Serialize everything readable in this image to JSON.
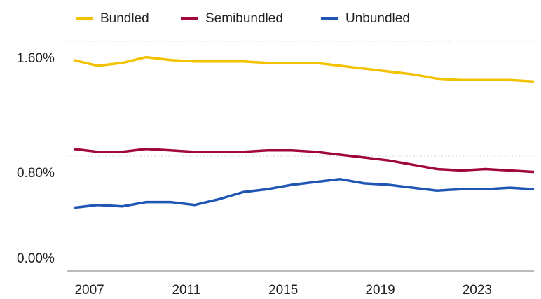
{
  "chart_data": {
    "type": "line",
    "x": [
      2006,
      2007,
      2008,
      2009,
      2010,
      2011,
      2012,
      2013,
      2014,
      2015,
      2016,
      2017,
      2018,
      2019,
      2020,
      2021,
      2022,
      2023,
      2024,
      2025
    ],
    "xlim": [
      2006,
      2025
    ],
    "xticks": [
      2007,
      2011,
      2015,
      2019,
      2023
    ],
    "ylim": [
      0,
      1.6
    ],
    "yticks": [
      {
        "value": 0,
        "label": "0.00%"
      },
      {
        "value": 0.8,
        "label": "0.80%"
      },
      {
        "value": 1.6,
        "label": "1.60%"
      }
    ],
    "grid": true,
    "legend": "top",
    "series": [
      {
        "name": "Bundled",
        "color": "#f2c200",
        "values": [
          1.47,
          1.43,
          1.45,
          1.49,
          1.47,
          1.46,
          1.46,
          1.46,
          1.45,
          1.45,
          1.45,
          1.43,
          1.41,
          1.39,
          1.37,
          1.34,
          1.33,
          1.33,
          1.33,
          1.32
        ]
      },
      {
        "name": "Semibundled",
        "color": "#a1063e",
        "values": [
          0.85,
          0.83,
          0.83,
          0.85,
          0.84,
          0.83,
          0.83,
          0.83,
          0.84,
          0.84,
          0.83,
          0.81,
          0.79,
          0.77,
          0.74,
          0.71,
          0.7,
          0.71,
          0.7,
          0.69
        ]
      },
      {
        "name": "Unbundled",
        "color": "#1f55b3",
        "values": [
          0.44,
          0.46,
          0.45,
          0.48,
          0.48,
          0.46,
          0.5,
          0.55,
          0.57,
          0.6,
          0.62,
          0.64,
          0.61,
          0.6,
          0.58,
          0.56,
          0.57,
          0.57,
          0.58,
          0.57
        ]
      }
    ]
  }
}
